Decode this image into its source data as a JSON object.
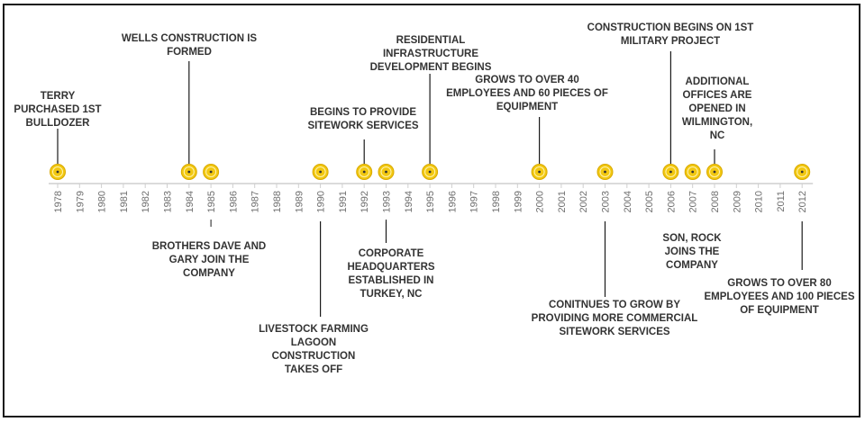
{
  "colors": {
    "marker": "#f2c811",
    "marker_ring": "#d9a900",
    "axis": "#cfcfcf",
    "stem": "#1a1a1a",
    "text": "#333333",
    "year": "#6f6f6f"
  },
  "years": [
    "1978",
    "1979",
    "1980",
    "1981",
    "1982",
    "1983",
    "1984",
    "1985",
    "1986",
    "1987",
    "1988",
    "1989",
    "1990",
    "1991",
    "1992",
    "1993",
    "1994",
    "1995",
    "1996",
    "1997",
    "1998",
    "1999",
    "2000",
    "2001",
    "2002",
    "2003",
    "2004",
    "2005",
    "2006",
    "2007",
    "2008",
    "2009",
    "2010",
    "2011",
    "2012"
  ],
  "markers": [
    1978,
    1984,
    1985,
    1990,
    1992,
    1993,
    1995,
    2000,
    2003,
    2006,
    2007,
    2008,
    2012
  ],
  "events": [
    {
      "year": 1978,
      "lines": [
        "TERRY",
        "PURCHASED 1ST",
        "BULLDOZER"
      ]
    },
    {
      "year": 1984,
      "lines": [
        "WELLS CONSTRUCTION IS",
        "FORMED"
      ]
    },
    {
      "year": 1985,
      "lines": [
        "BROTHERS DAVE AND",
        "GARY JOIN THE",
        "COMPANY"
      ]
    },
    {
      "year": 1990,
      "lines": [
        "LIVESTOCK FARMING",
        "LAGOON",
        "CONSTRUCTION",
        "TAKES OFF"
      ]
    },
    {
      "year": 1992,
      "lines": [
        "BEGINS TO PROVIDE",
        "SITEWORK SERVICES"
      ]
    },
    {
      "year": 1993,
      "lines": [
        "CORPORATE",
        "HEADQUARTERS",
        "ESTABLISHED IN",
        "TURKEY, NC"
      ]
    },
    {
      "year": 1995,
      "lines": [
        "RESIDENTIAL",
        "INFRASTRUCTURE",
        "DEVELOPMENT BEGINS"
      ]
    },
    {
      "year": 2000,
      "lines": [
        "GROWS TO OVER 40",
        "EMPLOYEES AND 60 PIECES OF",
        "EQUIPMENT"
      ]
    },
    {
      "year": 2003,
      "lines": [
        "CONITNUES TO GROW BY",
        "PROVIDING MORE COMMERCIAL",
        "SITEWORK SERVICES"
      ]
    },
    {
      "year": 2006,
      "lines": [
        "CONSTRUCTION BEGINS ON 1ST",
        "MILITARY PROJECT"
      ]
    },
    {
      "year": 2007,
      "lines": [
        "SON, ROCK",
        "JOINS THE",
        "COMPANY"
      ]
    },
    {
      "year": 2008,
      "lines": [
        "ADDITIONAL",
        "OFFICES ARE",
        "OPENED IN",
        "WILMINGTON,",
        "NC"
      ]
    },
    {
      "year": 2012,
      "lines": [
        "GROWS TO OVER 80",
        "EMPLOYEES AND 100 PIECES",
        "OF EQUIPMENT"
      ]
    }
  ]
}
